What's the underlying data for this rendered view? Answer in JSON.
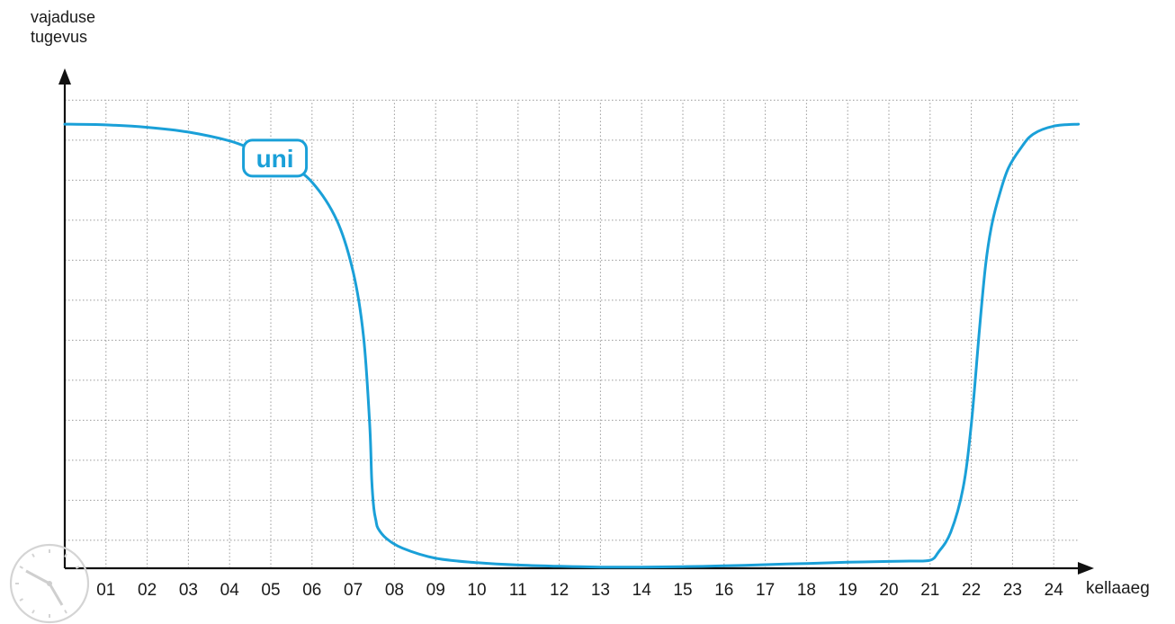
{
  "chart_data": {
    "type": "line",
    "title": "",
    "ylabel": [
      "vajaduse",
      "tugevus"
    ],
    "xlabel": "kellaaeg",
    "grid": true,
    "xlim": [
      0,
      24.6
    ],
    "ylim": [
      0,
      11
    ],
    "x_ticks": [
      "01",
      "02",
      "03",
      "04",
      "05",
      "06",
      "07",
      "08",
      "09",
      "10",
      "11",
      "12",
      "13",
      "14",
      "15",
      "16",
      "17",
      "18",
      "19",
      "20",
      "21",
      "22",
      "23",
      "24"
    ],
    "series": [
      {
        "name": "uni",
        "color": "#1aa0d8",
        "x": [
          0,
          1,
          2,
          3,
          4,
          4.6,
          5.4,
          6.0,
          6.6,
          7.0,
          7.25,
          7.4,
          7.45,
          7.5,
          7.55,
          7.6,
          7.8,
          8.2,
          9.0,
          10.0,
          11.0,
          12.0,
          13.0,
          14.0,
          15.0,
          16.0,
          17.0,
          18.0,
          19.0,
          20.0,
          20.5,
          21.0,
          21.2,
          21.5,
          21.8,
          22.0,
          22.2,
          22.35,
          22.5,
          22.7,
          22.9,
          23.2,
          23.5,
          24.0,
          24.6
        ],
        "y": [
          11.1,
          11.08,
          11.02,
          10.9,
          10.68,
          10.45,
          10.1,
          9.65,
          8.7,
          7.4,
          5.8,
          3.6,
          2.2,
          1.5,
          1.2,
          1.0,
          0.75,
          0.5,
          0.25,
          0.14,
          0.08,
          0.05,
          0.03,
          0.03,
          0.04,
          0.06,
          0.09,
          0.12,
          0.15,
          0.17,
          0.18,
          0.2,
          0.4,
          0.9,
          2.0,
          3.6,
          6.0,
          7.6,
          8.6,
          9.4,
          10.0,
          10.5,
          10.85,
          11.05,
          11.1
        ]
      }
    ],
    "annotation": {
      "text": "uni",
      "x": 5.1,
      "y": 10.25
    }
  }
}
